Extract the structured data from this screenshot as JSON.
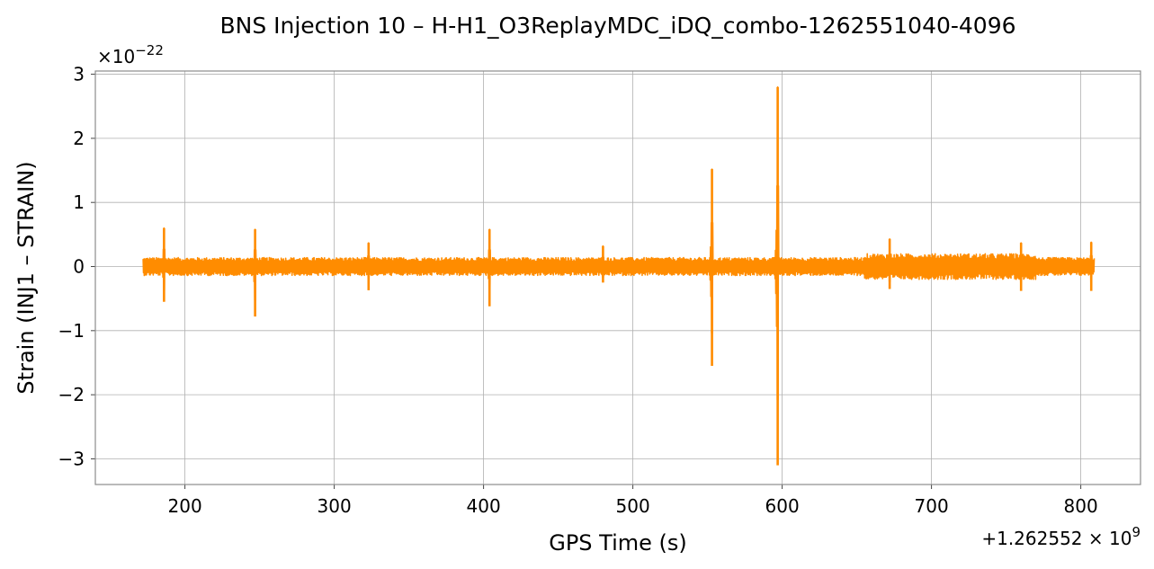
{
  "chart_data": {
    "type": "line",
    "title": "BNS Injection 10 – H-H1_O3ReplayMDC_iDQ_combo-1262551040-4096",
    "xlabel": "GPS Time (s)",
    "ylabel": "Strain (INJ1 – STRAIN)",
    "x_offset_label": "+1.262552 × 10",
    "x_offset_exponent": "9",
    "y_multiplier_label": "×10",
    "y_multiplier_exponent": "−22",
    "xlim": [
      140,
      840
    ],
    "ylim": [
      -3.4,
      3.05
    ],
    "x_ticks": [
      200,
      300,
      400,
      500,
      600,
      700,
      800
    ],
    "x_tick_labels": [
      "200",
      "300",
      "400",
      "500",
      "600",
      "700",
      "800"
    ],
    "y_ticks": [
      -3,
      -2,
      -1,
      0,
      1,
      2,
      3
    ],
    "y_tick_labels": [
      "−3",
      "−2",
      "−1",
      "0",
      "1",
      "2",
      "3"
    ],
    "grid": true,
    "series": [
      {
        "color": "#ff8c00",
        "x_range": [
          172,
          809
        ],
        "baseline_amplitude": 0.14,
        "noisy_segments": [
          {
            "x": [
              655,
              770
            ],
            "amplitude": 0.2
          }
        ],
        "spikes": [
          {
            "x": 186,
            "max": 0.6,
            "min": -0.55
          },
          {
            "x": 247,
            "max": 0.58,
            "min": -0.78
          },
          {
            "x": 323,
            "max": 0.37,
            "min": -0.37
          },
          {
            "x": 404,
            "max": 0.58,
            "min": -0.62
          },
          {
            "x": 480,
            "max": 0.32,
            "min": -0.25
          },
          {
            "x": 553,
            "max": 1.52,
            "min": -1.55
          },
          {
            "x": 597,
            "max": 2.8,
            "min": -3.1
          },
          {
            "x": 672,
            "max": 0.43,
            "min": -0.35
          },
          {
            "x": 760,
            "max": 0.37,
            "min": -0.38
          },
          {
            "x": 807,
            "max": 0.38,
            "min": -0.38
          }
        ]
      }
    ]
  }
}
